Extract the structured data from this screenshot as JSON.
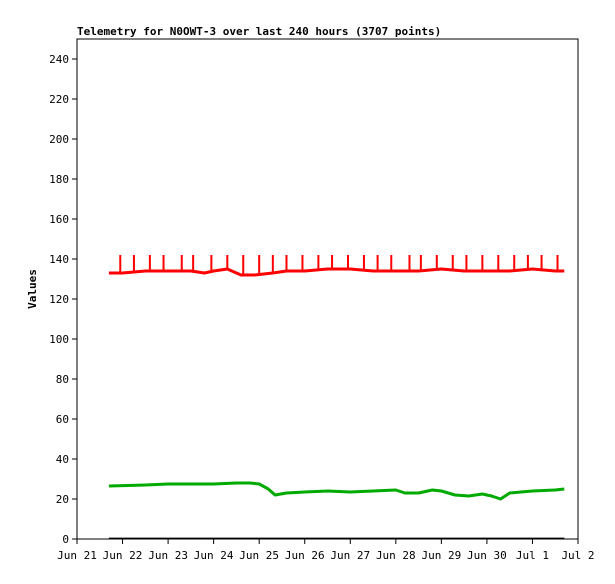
{
  "chart_data": {
    "type": "line",
    "title": "Telemetry for N0OWT-3 over last 240 hours (3707 points)",
    "xlabel": "",
    "ylabel": "Values",
    "ylim": [
      0,
      250
    ],
    "y_ticks": [
      0,
      20,
      40,
      60,
      80,
      100,
      120,
      140,
      160,
      180,
      200,
      220,
      240
    ],
    "x_tick_labels": [
      "Jun 21",
      "Jun 22",
      "Jun 23",
      "Jun 24",
      "Jun 25",
      "Jun 26",
      "Jun 27",
      "Jun 28",
      "Jun 29",
      "Jun 30",
      "Jul 1",
      "Jul 2"
    ],
    "x_range_days": [
      0,
      11
    ],
    "grid": false,
    "legend": "none",
    "series": [
      {
        "color": "#ff0000",
        "x_days": [
          0.7,
          1.0,
          1.5,
          2.0,
          2.5,
          2.8,
          3.0,
          3.3,
          3.6,
          3.9,
          4.3,
          4.6,
          5.0,
          5.5,
          6.0,
          6.5,
          7.0,
          7.5,
          8.0,
          8.5,
          9.0,
          9.5,
          10.0,
          10.5,
          10.7
        ],
        "y": [
          133,
          133,
          134,
          134,
          134,
          133,
          134,
          135,
          132,
          132,
          133,
          134,
          134,
          135,
          135,
          134,
          134,
          134,
          135,
          134,
          134,
          134,
          135,
          134,
          134
        ],
        "spikes_x_days": [
          0.95,
          1.25,
          1.6,
          1.9,
          2.3,
          2.55,
          2.95,
          3.3,
          3.65,
          4.0,
          4.3,
          4.6,
          4.95,
          5.3,
          5.6,
          5.95,
          6.3,
          6.6,
          6.9,
          7.3,
          7.55,
          7.9,
          8.25,
          8.55,
          8.9,
          9.25,
          9.6,
          9.9,
          10.2,
          10.55
        ],
        "spike_y": 142
      },
      {
        "color": "#00aa00",
        "x_days": [
          0.7,
          1.5,
          2.0,
          2.5,
          3.0,
          3.5,
          3.8,
          4.0,
          4.2,
          4.35,
          4.6,
          5.0,
          5.5,
          6.0,
          6.5,
          7.0,
          7.2,
          7.5,
          7.8,
          8.0,
          8.3,
          8.6,
          8.9,
          9.1,
          9.3,
          9.5,
          10.0,
          10.5,
          10.7
        ],
        "y": [
          26.5,
          27,
          27.5,
          27.5,
          27.5,
          28,
          28,
          27.5,
          25,
          22,
          23,
          23.5,
          24,
          23.5,
          24,
          24.5,
          23,
          23,
          24.5,
          24,
          22,
          21.5,
          22.5,
          21.5,
          20,
          23,
          24,
          24.5,
          25
        ]
      },
      {
        "color": "#000000",
        "x_days": [
          0.7,
          10.7
        ],
        "y": [
          0.3,
          0.3
        ]
      }
    ]
  }
}
